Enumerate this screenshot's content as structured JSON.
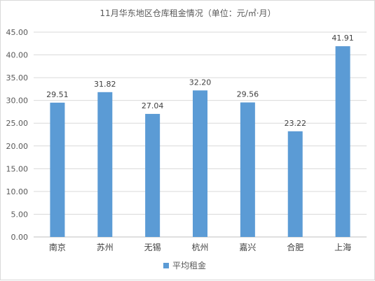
{
  "chart_data": {
    "type": "bar",
    "title": "11月华东地区仓库租金情况（单位：元/㎡·月）",
    "categories": [
      "南京",
      "苏州",
      "无锡",
      "杭州",
      "嘉兴",
      "合肥",
      "上海"
    ],
    "series": [
      {
        "name": "平均租金",
        "values": [
          29.51,
          31.82,
          27.04,
          32.2,
          29.56,
          23.22,
          41.91
        ]
      }
    ],
    "value_labels": [
      "29.51",
      "31.82",
      "27.04",
      "32.20",
      "29.56",
      "23.22",
      "41.91"
    ],
    "y_ticks": [
      "0.00",
      "5.00",
      "10.00",
      "15.00",
      "20.00",
      "25.00",
      "30.00",
      "35.00",
      "40.00",
      "45.00"
    ],
    "ylim": [
      0,
      45
    ],
    "grid": true,
    "legend_position": "bottom",
    "bar_color": "#5b9bd5"
  }
}
